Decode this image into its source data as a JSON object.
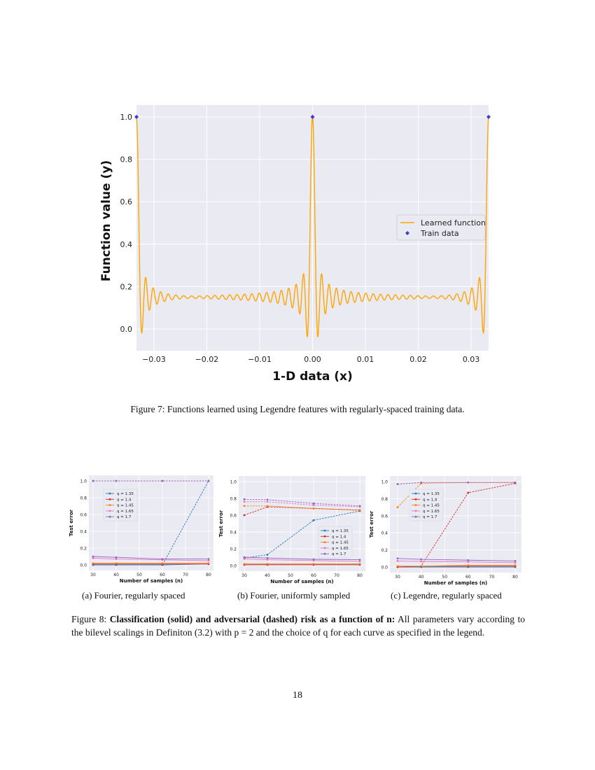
{
  "figure7": {
    "caption": "Figure 7: Functions learned using Legendre features with regularly-spaced training data.",
    "chart_data": {
      "type": "line",
      "xlabel": "1-D data (x)",
      "ylabel": "Function value (y)",
      "xlim": [
        -0.0333,
        0.0333
      ],
      "ylim": [
        -0.1,
        1.05
      ],
      "xticks": [
        -0.03,
        -0.02,
        -0.01,
        0.0,
        0.01,
        0.02,
        0.03
      ],
      "xtick_labels": [
        "−0.03",
        "−0.02",
        "−0.01",
        "0.00",
        "0.01",
        "0.02",
        "0.03"
      ],
      "yticks": [
        0.0,
        0.2,
        0.4,
        0.6,
        0.8,
        1.0
      ],
      "ytick_labels": [
        "0.0",
        "0.2",
        "0.4",
        "0.6",
        "0.8",
        "1.0"
      ],
      "grid": true,
      "legend_position": "center-right",
      "series": [
        {
          "name": "Learned function",
          "kind": "line",
          "color": "#ffa500",
          "baseline": 0.15,
          "peak_x": [
            -0.0333,
            0.0,
            0.0333
          ],
          "peak_y": 1.0,
          "min_y": -0.04
        },
        {
          "name": "Train data",
          "kind": "scatter",
          "color": "#3b3bd6",
          "x": [
            -0.0333,
            0.0,
            0.0333
          ],
          "y": [
            1.0,
            1.0,
            1.0
          ]
        }
      ]
    }
  },
  "figure8": {
    "caption_label": "Figure 8:",
    "caption_bold": "Classification (solid) and adversarial (dashed) risk as a function of n:",
    "caption_rest": " All parameters vary according to the bilevel scalings in Definiton (3.2) with p = 2 and the choice of q for each curve as specified in the legend.",
    "chart_data": [
      {
        "type": "line",
        "subcaption": "(a) Fourier, regularly spaced",
        "xlabel": "Number of samples (n)",
        "ylabel": "Test error",
        "x": [
          30,
          40,
          60,
          80
        ],
        "xlim": [
          28,
          82
        ],
        "ylim": [
          -0.04,
          1.04
        ],
        "grid": true,
        "legend_position": "upper-left",
        "xticks": [
          30,
          40,
          50,
          60,
          70,
          80
        ],
        "yticks": [
          0.0,
          0.2,
          0.4,
          0.6,
          0.8,
          1.0
        ],
        "series": [
          {
            "name": "q = 1.35",
            "color": "#1f77b4",
            "solid": [
              0,
              0,
              0,
              0.01
            ],
            "dashed": [
              0,
              0,
              0,
              1.0
            ]
          },
          {
            "name": "q = 1.4",
            "color": "#d62728",
            "solid": [
              0.01,
              0.01,
              0.01,
              0.01
            ],
            "dashed": [
              1,
              1,
              1,
              1
            ]
          },
          {
            "name": "q = 1.45",
            "color": "#ff7f0e",
            "solid": [
              0.02,
              0.02,
              0.02,
              0.02
            ],
            "dashed": [
              1,
              1,
              1,
              1
            ]
          },
          {
            "name": "q = 1.65",
            "color": "#e377c2",
            "solid": [
              0.08,
              0.07,
              0.06,
              0.05
            ],
            "dashed": [
              1,
              1,
              1,
              1
            ]
          },
          {
            "name": "q = 1.7",
            "color": "#9467bd",
            "solid": [
              0.1,
              0.09,
              0.07,
              0.07
            ],
            "dashed": [
              1,
              1,
              1,
              1
            ]
          }
        ]
      },
      {
        "type": "line",
        "subcaption": "(b) Fourier, uniformly sampled",
        "xlabel": "Number of samples (n)",
        "ylabel": "Test error",
        "x": [
          30,
          40,
          60,
          80
        ],
        "xlim": [
          28,
          82
        ],
        "ylim": [
          -0.04,
          1.04
        ],
        "grid": true,
        "legend_position": "center-right",
        "xticks": [
          30,
          40,
          50,
          60,
          70,
          80
        ],
        "yticks": [
          0.0,
          0.2,
          0.4,
          0.6,
          0.8,
          1.0
        ],
        "series": [
          {
            "name": "q = 1.35",
            "color": "#1f77b4",
            "solid": [
              0.01,
              0.01,
              0.01,
              0.01
            ],
            "dashed": [
              0.09,
              0.13,
              0.54,
              0.65
            ]
          },
          {
            "name": "q = 1.4",
            "color": "#d62728",
            "solid": [
              0.01,
              0.01,
              0.01,
              0.01
            ],
            "dashed": [
              0.6,
              0.7,
              0.68,
              0.66
            ]
          },
          {
            "name": "q = 1.45",
            "color": "#ff7f0e",
            "solid": [
              0.02,
              0.02,
              0.02,
              0.02
            ],
            "dashed": [
              0.71,
              0.71,
              0.68,
              0.66
            ]
          },
          {
            "name": "q = 1.65",
            "color": "#e377c2",
            "solid": [
              0.08,
              0.07,
              0.06,
              0.05
            ],
            "dashed": [
              0.76,
              0.76,
              0.72,
              0.7
            ]
          },
          {
            "name": "q = 1.7",
            "color": "#9467bd",
            "solid": [
              0.1,
              0.09,
              0.075,
              0.07
            ],
            "dashed": [
              0.79,
              0.785,
              0.74,
              0.71
            ]
          }
        ]
      },
      {
        "type": "line",
        "subcaption": "(c) Legendre, regularly spaced",
        "xlabel": "Number of samples (n)",
        "ylabel": "Test error",
        "x": [
          30,
          40,
          60,
          80
        ],
        "xlim": [
          28,
          82
        ],
        "ylim": [
          -0.04,
          1.04
        ],
        "grid": true,
        "legend_position": "upper-left",
        "xticks": [
          30,
          40,
          50,
          60,
          70,
          80
        ],
        "yticks": [
          0.0,
          0.2,
          0.4,
          0.6,
          0.8,
          1.0
        ],
        "series": [
          {
            "name": "q = 1.35",
            "color": "#1f77b4",
            "solid": [
              0,
              0,
              0,
              0
            ],
            "dashed": [
              0,
              0,
              0,
              0
            ]
          },
          {
            "name": "q = 1.4",
            "color": "#d62728",
            "solid": [
              0,
              0.01,
              0.01,
              0.01
            ],
            "dashed": [
              0,
              0.01,
              0.87,
              0.98
            ]
          },
          {
            "name": "q = 1.45",
            "color": "#ff7f0e",
            "solid": [
              0.01,
              0.01,
              0.02,
              0.02
            ],
            "dashed": [
              0.7,
              0.98,
              0.99,
              0.99
            ]
          },
          {
            "name": "q = 1.65",
            "color": "#e377c2",
            "solid": [
              0.07,
              0.065,
              0.06,
              0.05
            ],
            "dashed": [
              0.97,
              0.99,
              0.99,
              0.99
            ]
          },
          {
            "name": "q = 1.7",
            "color": "#9467bd",
            "solid": [
              0.1,
              0.09,
              0.08,
              0.07
            ],
            "dashed": [
              0.97,
              0.99,
              0.99,
              0.99
            ]
          }
        ]
      }
    ]
  },
  "page_number": "18"
}
